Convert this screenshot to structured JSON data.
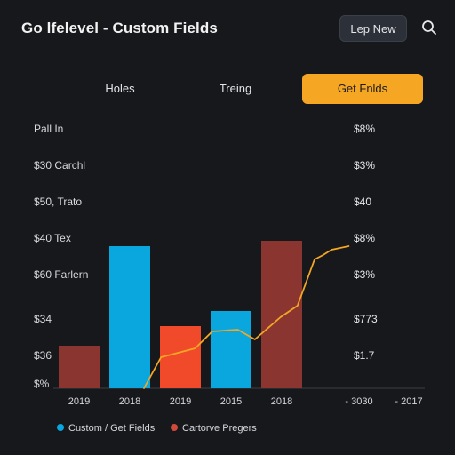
{
  "header": {
    "title": "Go lfelevel - Custom Fields",
    "new_button": "Lep New",
    "search_icon": "search-icon"
  },
  "tabs": [
    {
      "label": "Holes",
      "active": false
    },
    {
      "label": "Treing",
      "active": false
    },
    {
      "label": "Get Fnlds",
      "active": true
    }
  ],
  "rows": [
    {
      "label": "Pall In",
      "value": "$8%"
    },
    {
      "label": "$30 Carchl",
      "value": "$3%"
    },
    {
      "label": "$50, Trato",
      "value": "$40"
    },
    {
      "label": "$40 Tex",
      "value": "$8%"
    },
    {
      "label": "$60 Farlern",
      "value": "$3%"
    },
    {
      "label": "$34",
      "value": "$773"
    },
    {
      "label": "$36",
      "value": "$1.7"
    },
    {
      "label": "$%",
      "value": ""
    }
  ],
  "colors": {
    "background": "#16181c",
    "accent": "#f5a623",
    "blue": "#0aa6de",
    "red_dark": "#8a3530",
    "red_bright": "#f04a2a",
    "line": "#f5a623"
  },
  "chart_data": {
    "type": "bar",
    "categories": [
      "2019",
      "2018",
      "2019",
      "2015",
      "2018"
    ],
    "bars": [
      {
        "category": "2019",
        "value": 48,
        "color": "#8a3530"
      },
      {
        "category": "2018",
        "value": 160,
        "color": "#0aa6de"
      },
      {
        "category": "2019",
        "value": 70,
        "color": "#f04a2a"
      },
      {
        "category": "2015",
        "value": 87,
        "color": "#0aa6de"
      },
      {
        "category": "2018",
        "value": 166,
        "color": "#8a3530"
      }
    ],
    "line": {
      "color": "#f5a623",
      "points": [
        [
          0,
          0
        ],
        [
          0.4,
          35
        ],
        [
          1.2,
          45
        ],
        [
          1.6,
          64
        ],
        [
          2.2,
          66
        ],
        [
          2.6,
          55
        ],
        [
          3.2,
          80
        ],
        [
          3.6,
          93
        ],
        [
          4.0,
          145
        ],
        [
          4.2,
          150
        ],
        [
          4.4,
          156
        ],
        [
          4.8,
          160
        ]
      ]
    },
    "extra_xticks": [
      "- 3030",
      "- 2017"
    ],
    "ylim": [
      0,
      170
    ],
    "legend": [
      {
        "name": "Custom / Get Fields",
        "color": "#0aa6de"
      },
      {
        "name": "Cartorve Pregers",
        "color": "#d04a3a"
      }
    ]
  }
}
